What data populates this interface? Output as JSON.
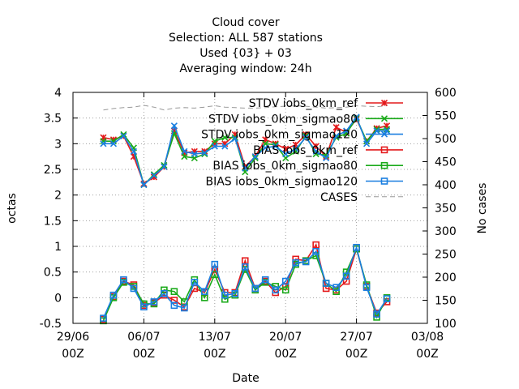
{
  "chart_data": {
    "type": "line",
    "title_lines": [
      "Cloud cover",
      "Selection: ALL    587 stations",
      "Used {03} + 03",
      "Averaging window: 24h"
    ],
    "xlabel": "Date",
    "ylabel": "octas",
    "y2label": "No cases",
    "xlim": [
      "2024-06-29 00:00",
      "2024-08-03 00:00"
    ],
    "ylim": [
      -0.5,
      4
    ],
    "y2lim": [
      100,
      600
    ],
    "x_ticks": [
      {
        "x": "2024-06-29 00:00",
        "line1": "29/06",
        "line2": "00Z"
      },
      {
        "x": "2024-07-06 00:00",
        "line1": "06/07",
        "line2": "00Z"
      },
      {
        "x": "2024-07-13 00:00",
        "line1": "13/07",
        "line2": "00Z"
      },
      {
        "x": "2024-07-20 00:00",
        "line1": "20/07",
        "line2": "00Z"
      },
      {
        "x": "2024-07-27 00:00",
        "line1": "27/07",
        "line2": "00Z"
      },
      {
        "x": "2024-08-03 00:00",
        "line1": "03/08",
        "line2": "00Z"
      }
    ],
    "y_ticks": [
      "-0.5",
      "0",
      "0.5",
      "1",
      "1.5",
      "2",
      "2.5",
      "3",
      "3.5",
      "4"
    ],
    "y2_ticks": [
      "100",
      "150",
      "200",
      "250",
      "300",
      "350",
      "400",
      "450",
      "500",
      "550",
      "600"
    ],
    "grid": true,
    "legend_position": "top-right",
    "x": [
      "2024-07-02 00:00",
      "2024-07-03 00:00",
      "2024-07-04 00:00",
      "2024-07-05 00:00",
      "2024-07-06 00:00",
      "2024-07-07 00:00",
      "2024-07-08 00:00",
      "2024-07-09 00:00",
      "2024-07-10 00:00",
      "2024-07-11 00:00",
      "2024-07-12 00:00",
      "2024-07-13 00:00",
      "2024-07-14 00:00",
      "2024-07-15 00:00",
      "2024-07-16 00:00",
      "2024-07-17 00:00",
      "2024-07-18 00:00",
      "2024-07-19 00:00",
      "2024-07-20 00:00",
      "2024-07-21 00:00",
      "2024-07-22 00:00",
      "2024-07-23 00:00",
      "2024-07-24 00:00",
      "2024-07-25 00:00",
      "2024-07-26 00:00",
      "2024-07-27 00:00",
      "2024-07-28 00:00",
      "2024-07-29 00:00",
      "2024-07-30 00:00"
    ],
    "series": [
      {
        "name": "STDV iobs_0km_ref",
        "axis": "y",
        "color": "#e41a1c",
        "marker": "star",
        "values": [
          3.12,
          3.08,
          3.15,
          2.75,
          2.22,
          2.35,
          2.55,
          3.25,
          2.82,
          2.85,
          2.85,
          3.0,
          3.0,
          3.18,
          2.55,
          2.75,
          3.08,
          3.0,
          2.9,
          2.98,
          3.18,
          2.95,
          2.75,
          3.32,
          3.22,
          3.48,
          3.05,
          3.3,
          3.35
        ]
      },
      {
        "name": "STDV iobs_0km_sigmao80",
        "axis": "y",
        "color": "#1aaa1a",
        "marker": "x",
        "values": [
          3.05,
          3.05,
          3.18,
          2.92,
          2.2,
          2.4,
          2.58,
          3.2,
          2.75,
          2.72,
          2.8,
          3.05,
          3.12,
          3.12,
          2.45,
          2.72,
          3.0,
          2.98,
          2.72,
          2.85,
          3.15,
          2.8,
          2.78,
          3.12,
          3.2,
          3.5,
          3.05,
          3.28,
          3.28
        ]
      },
      {
        "name": "STDV iobs_0km_sigmao120",
        "axis": "y",
        "color": "#1a7fe0",
        "marker": "x",
        "values": [
          3.0,
          3.0,
          3.15,
          2.85,
          2.2,
          2.38,
          2.55,
          3.35,
          2.85,
          2.8,
          2.82,
          2.95,
          2.95,
          3.1,
          2.52,
          2.75,
          2.92,
          2.95,
          2.8,
          2.9,
          3.12,
          2.85,
          2.72,
          3.15,
          3.25,
          3.52,
          3.0,
          3.25,
          3.25
        ]
      },
      {
        "name": "BIAS iobs_0km_ref",
        "axis": "y",
        "color": "#e41a1c",
        "marker": "square",
        "values": [
          -0.42,
          0.02,
          0.32,
          0.25,
          -0.15,
          -0.1,
          0.05,
          -0.05,
          -0.18,
          0.18,
          0.1,
          0.55,
          0.1,
          0.1,
          0.72,
          0.18,
          0.32,
          0.1,
          0.22,
          0.75,
          0.72,
          1.03,
          0.18,
          0.15,
          0.32,
          0.95,
          0.22,
          -0.3,
          -0.08
        ]
      },
      {
        "name": "BIAS iobs_0km_sigmao80",
        "axis": "y",
        "color": "#1aaa1a",
        "marker": "square",
        "values": [
          -0.45,
          0.0,
          0.3,
          0.22,
          -0.12,
          -0.12,
          0.15,
          0.12,
          -0.08,
          0.35,
          0.0,
          0.45,
          -0.03,
          0.05,
          0.55,
          0.15,
          0.3,
          0.22,
          0.15,
          0.65,
          0.72,
          0.82,
          0.28,
          0.12,
          0.5,
          0.95,
          0.25,
          -0.38,
          0.0
        ]
      },
      {
        "name": "BIAS iobs_0km_sigmao120",
        "axis": "y",
        "color": "#1a7fe0",
        "marker": "square",
        "values": [
          -0.4,
          0.05,
          0.35,
          0.18,
          -0.18,
          -0.08,
          0.08,
          -0.15,
          -0.2,
          0.3,
          0.12,
          0.65,
          0.05,
          0.08,
          0.6,
          0.18,
          0.35,
          0.15,
          0.32,
          0.68,
          0.7,
          0.9,
          0.28,
          0.2,
          0.42,
          0.98,
          0.2,
          -0.32,
          -0.02
        ]
      },
      {
        "name": "CASES",
        "axis": "y2",
        "color": "#999999",
        "marker": "none",
        "dashed": true,
        "values": [
          562,
          565,
          567,
          568,
          572,
          568,
          562,
          566,
          567,
          566,
          568,
          571,
          568,
          567,
          566,
          566,
          567,
          569,
          570,
          571,
          570,
          568,
          566,
          567,
          568,
          571,
          570,
          569,
          571
        ]
      }
    ]
  }
}
